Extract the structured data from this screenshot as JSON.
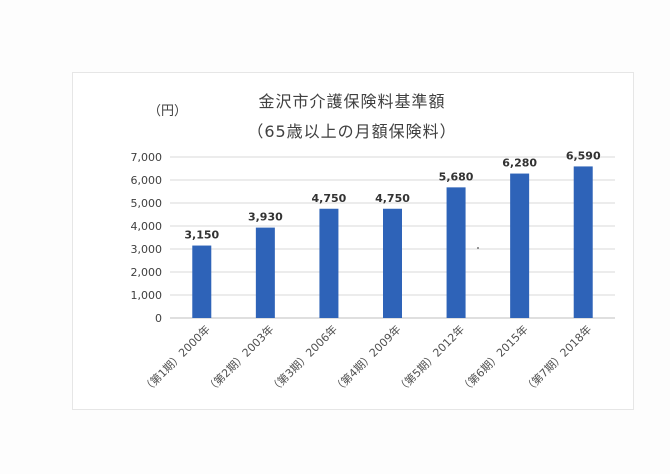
{
  "chart_data": {
    "type": "bar",
    "title": "金沢市介護保険料基準額",
    "subtitle": "（65歳以上の月額保険料）",
    "ylabel": "（円）",
    "xlabel": "",
    "categories": [
      "（第1期）2000年",
      "（第2期）2003年",
      "（第3期）2006年",
      "（第4期）2009年",
      "（第5期）2012年",
      "（第6期）2015年",
      "（第7期）2018年"
    ],
    "values": [
      3150,
      3930,
      4750,
      4750,
      5680,
      6280,
      6590
    ],
    "value_labels": [
      "3,150",
      "3,930",
      "4,750",
      "4,750",
      "5,680",
      "6,280",
      "6,590"
    ],
    "ylim": [
      0,
      7000
    ],
    "yticks": [
      0,
      1000,
      2000,
      3000,
      4000,
      5000,
      6000,
      7000
    ],
    "ytick_labels": [
      "0",
      "1,000",
      "2,000",
      "3,000",
      "4,000",
      "5,000",
      "6,000",
      "7,000"
    ],
    "grid": true,
    "legend": "none",
    "colors": {
      "bar": "#2e63b8",
      "grid": "#d9d9d9"
    }
  }
}
